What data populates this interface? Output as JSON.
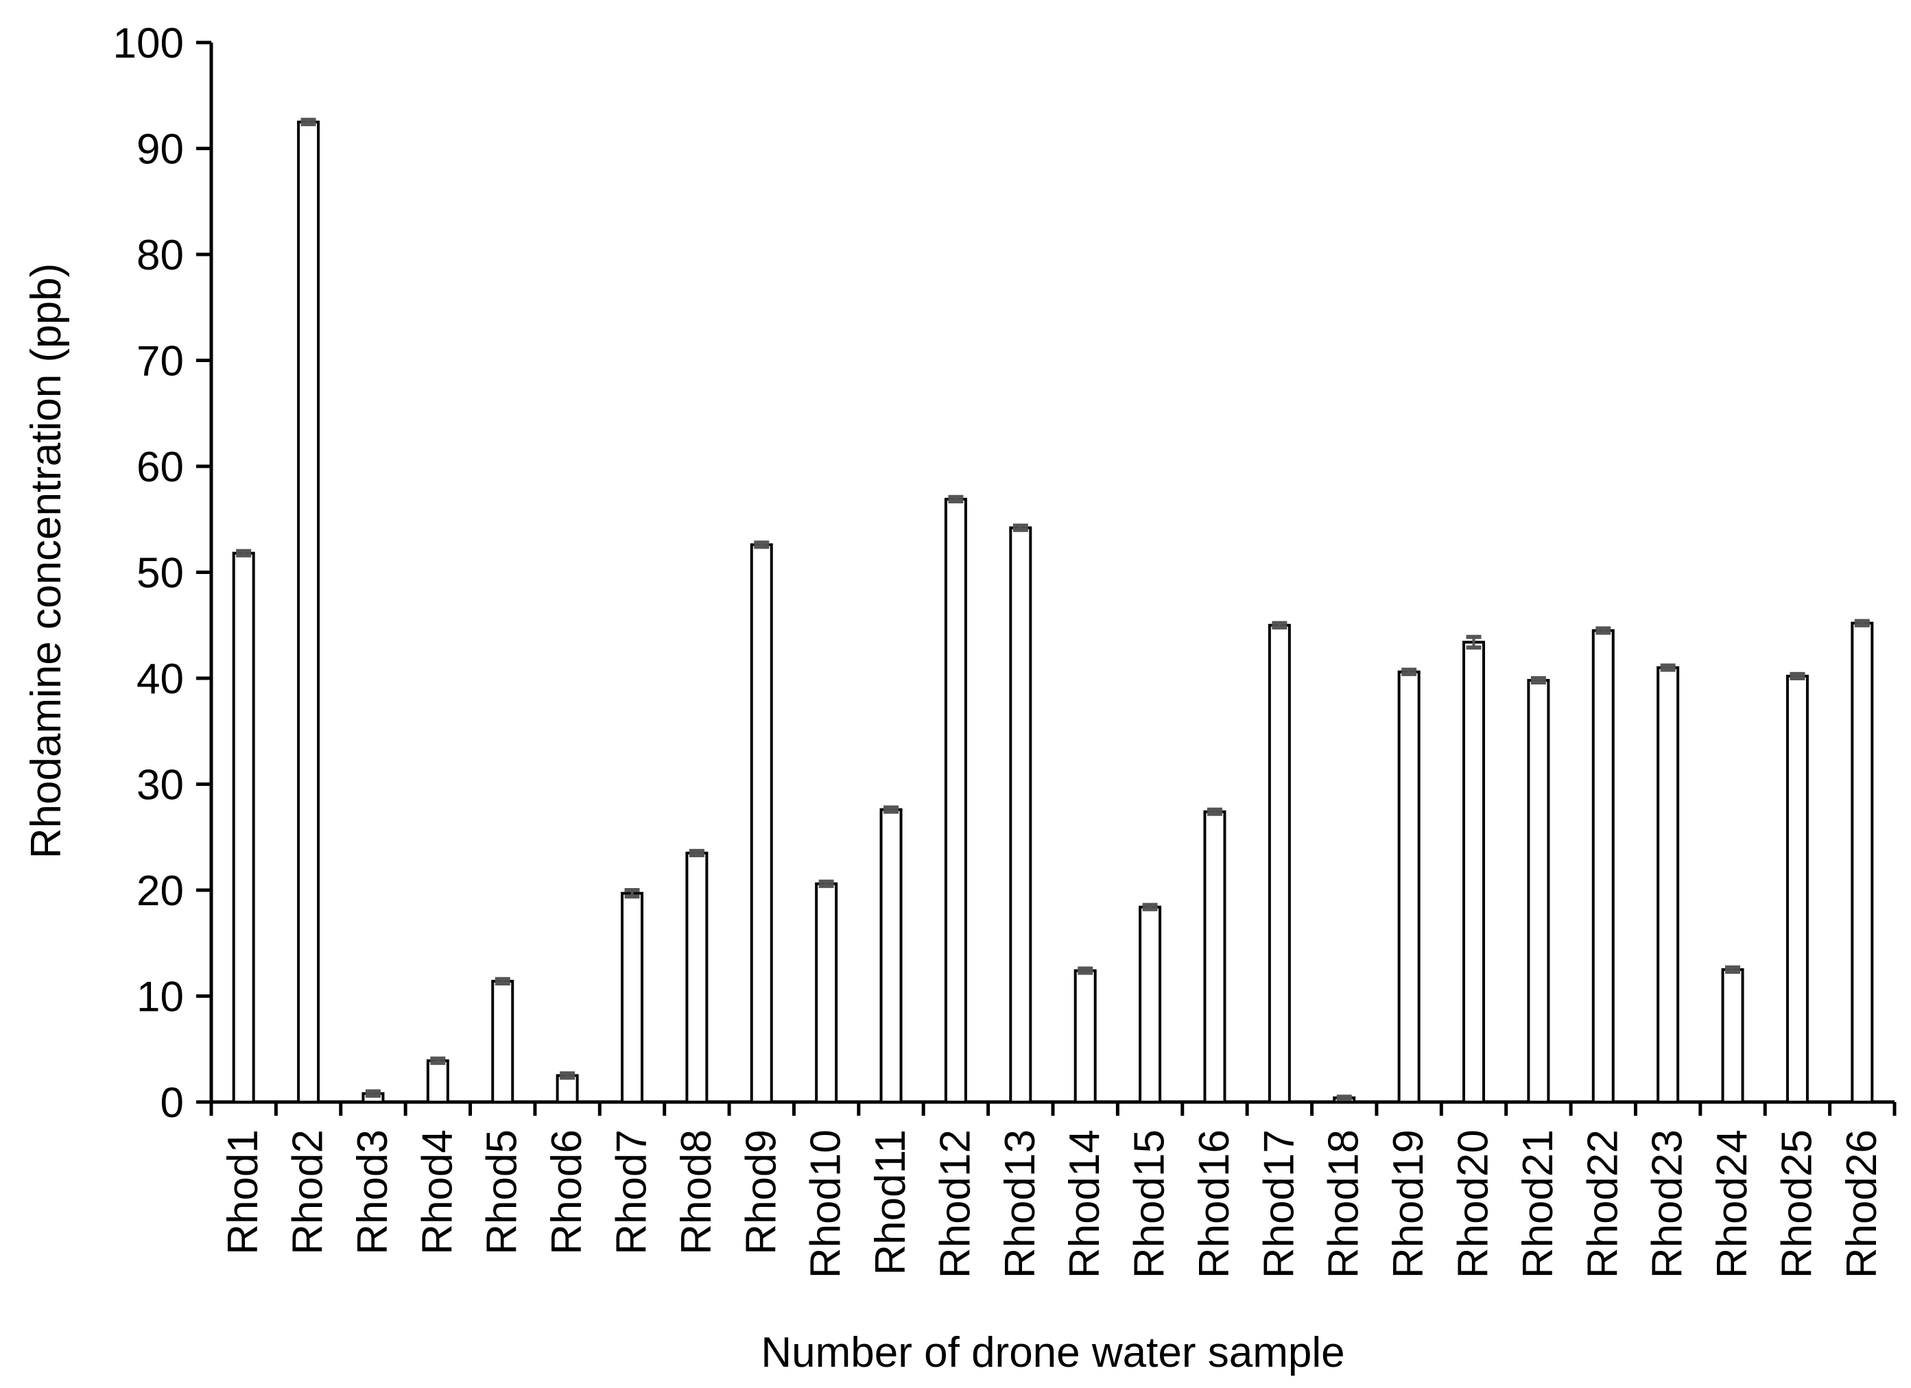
{
  "chart_data": {
    "type": "bar",
    "title": "",
    "xlabel": "Number of drone water sample",
    "ylabel": "Rhodamine concentration (ppb)",
    "ylim": [
      0,
      100
    ],
    "yticks": [
      "0",
      "10",
      "20",
      "30",
      "40",
      "50",
      "60",
      "70",
      "80",
      "90",
      "100"
    ],
    "grid": false,
    "legend": "none",
    "categories": [
      "Rhod1",
      "Rhod2",
      "Rhod3",
      "Rhod4",
      "Rhod5",
      "Rhod6",
      "Rhod7",
      "Rhod8",
      "Rhod9",
      "Rhod10",
      "Rhod11",
      "Rhod12",
      "Rhod13",
      "Rhod14",
      "Rhod15",
      "Rhod16",
      "Rhod17",
      "Rhod18",
      "Rhod19",
      "Rhod20",
      "Rhod21",
      "Rhod22",
      "Rhod23",
      "Rhod24",
      "Rhod25",
      "Rhod26"
    ],
    "values": [
      51.8,
      92.5,
      0.8,
      3.9,
      11.4,
      2.5,
      19.7,
      23.5,
      52.6,
      20.6,
      27.6,
      56.9,
      54.2,
      12.4,
      18.4,
      27.4,
      45.0,
      0.4,
      40.6,
      43.4,
      39.8,
      44.5,
      41.0,
      12.5,
      40.2,
      45.2
    ],
    "errors": [
      0.2,
      0.2,
      0.2,
      0.2,
      0.2,
      0.2,
      0.3,
      0.2,
      0.2,
      0.2,
      0.2,
      0.2,
      0.2,
      0.2,
      0.2,
      0.2,
      0.2,
      0.1,
      0.2,
      0.5,
      0.2,
      0.2,
      0.2,
      0.2,
      0.2,
      0.2
    ],
    "colors": {
      "bar_fill": "#ffffff",
      "bar_stroke": "#000000",
      "error_bar": "#555555",
      "axis": "#000000"
    }
  }
}
